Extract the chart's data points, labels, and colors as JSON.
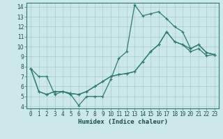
{
  "xlabel": "Humidex (Indice chaleur)",
  "background_color": "#cce8e8",
  "line_color": "#2d7a72",
  "grid_color": "#a8cccc",
  "xlim": [
    -0.5,
    23.5
  ],
  "ylim": [
    3.8,
    14.4
  ],
  "xticks": [
    0,
    1,
    2,
    3,
    4,
    5,
    6,
    7,
    8,
    9,
    10,
    11,
    12,
    13,
    14,
    15,
    16,
    17,
    18,
    19,
    20,
    21,
    22,
    23
  ],
  "yticks": [
    4,
    5,
    6,
    7,
    8,
    9,
    10,
    11,
    12,
    13,
    14
  ],
  "line1_x": [
    0,
    1,
    2,
    3,
    4,
    5,
    6,
    7,
    8,
    9,
    10,
    11,
    12,
    13,
    14,
    15,
    16,
    17,
    18,
    19,
    20,
    21,
    22,
    23
  ],
  "line1_y": [
    7.8,
    7.0,
    7.0,
    5.2,
    5.5,
    5.2,
    4.1,
    5.0,
    5.0,
    5.0,
    6.7,
    8.8,
    9.5,
    14.2,
    13.1,
    13.3,
    13.5,
    12.8,
    12.0,
    11.5,
    9.8,
    10.2,
    9.4,
    9.2
  ],
  "line2_x": [
    0,
    1,
    2,
    3,
    4,
    5,
    6,
    7,
    8,
    9,
    10,
    11,
    12,
    13,
    14,
    15,
    16,
    17,
    18,
    19,
    20,
    21,
    22,
    23
  ],
  "line2_y": [
    7.8,
    5.5,
    5.2,
    5.5,
    5.5,
    5.3,
    5.2,
    5.5,
    6.0,
    6.5,
    7.0,
    7.2,
    7.3,
    7.5,
    8.5,
    9.5,
    10.2,
    11.5,
    10.5,
    10.2,
    9.8,
    10.2,
    9.4,
    9.2
  ],
  "line3_x": [
    0,
    1,
    2,
    3,
    4,
    5,
    6,
    7,
    8,
    9,
    10,
    11,
    12,
    13,
    14,
    15,
    16,
    17,
    18,
    19,
    20,
    21,
    22,
    23
  ],
  "line3_y": [
    7.8,
    5.5,
    5.2,
    5.5,
    5.5,
    5.3,
    5.2,
    5.5,
    6.0,
    6.5,
    7.0,
    7.2,
    7.3,
    7.5,
    8.5,
    9.5,
    10.2,
    11.5,
    10.5,
    10.2,
    9.5,
    9.8,
    9.1,
    9.2
  ],
  "tick_fontsize": 5.5,
  "xlabel_fontsize": 6.5
}
